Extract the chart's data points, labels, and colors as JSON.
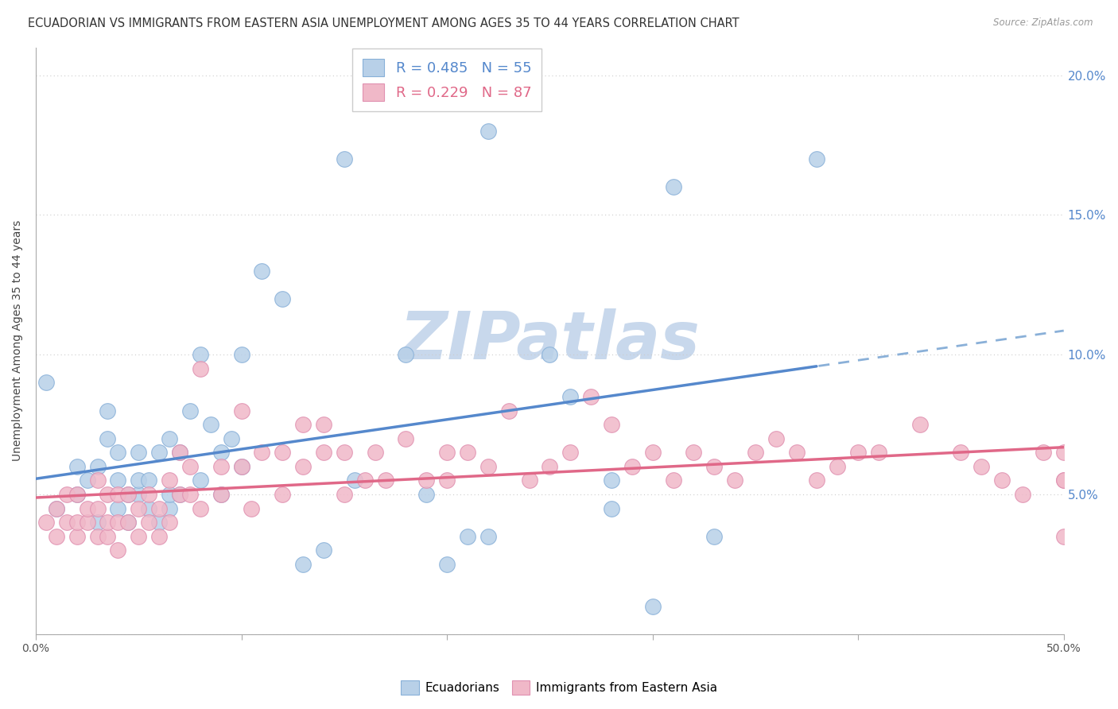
{
  "title": "ECUADORIAN VS IMMIGRANTS FROM EASTERN ASIA UNEMPLOYMENT AMONG AGES 35 TO 44 YEARS CORRELATION CHART",
  "source": "Source: ZipAtlas.com",
  "ylabel": "Unemployment Among Ages 35 to 44 years",
  "xlim": [
    0.0,
    0.5
  ],
  "ylim": [
    0.0,
    0.21
  ],
  "xticks": [
    0.0,
    0.1,
    0.2,
    0.3,
    0.4,
    0.5
  ],
  "yticks": [
    0.0,
    0.05,
    0.1,
    0.15,
    0.2
  ],
  "right_ytick_labels": [
    "",
    "5.0%",
    "10.0%",
    "15.0%",
    "20.0%"
  ],
  "xtick_labels": [
    "0.0%",
    "",
    "",
    "",
    "",
    "50.0%"
  ],
  "watermark": "ZIPatlas",
  "series": [
    {
      "name": "Ecuadorians",
      "R": 0.485,
      "N": 55,
      "color": "#b8d0e8",
      "border_color": "#88b0d8",
      "line_color": "#5588cc",
      "dash_color": "#8ab0d8",
      "x": [
        0.005,
        0.01,
        0.02,
        0.02,
        0.025,
        0.03,
        0.03,
        0.035,
        0.035,
        0.04,
        0.04,
        0.04,
        0.045,
        0.045,
        0.05,
        0.05,
        0.05,
        0.055,
        0.055,
        0.06,
        0.06,
        0.065,
        0.065,
        0.065,
        0.07,
        0.07,
        0.075,
        0.08,
        0.08,
        0.085,
        0.09,
        0.09,
        0.095,
        0.1,
        0.1,
        0.11,
        0.12,
        0.13,
        0.14,
        0.15,
        0.155,
        0.18,
        0.19,
        0.2,
        0.21,
        0.22,
        0.22,
        0.25,
        0.26,
        0.28,
        0.28,
        0.3,
        0.31,
        0.33,
        0.38
      ],
      "y": [
        0.09,
        0.045,
        0.05,
        0.06,
        0.055,
        0.04,
        0.06,
        0.07,
        0.08,
        0.045,
        0.055,
        0.065,
        0.04,
        0.05,
        0.05,
        0.055,
        0.065,
        0.045,
        0.055,
        0.04,
        0.065,
        0.045,
        0.05,
        0.07,
        0.05,
        0.065,
        0.08,
        0.055,
        0.1,
        0.075,
        0.05,
        0.065,
        0.07,
        0.06,
        0.1,
        0.13,
        0.12,
        0.025,
        0.03,
        0.17,
        0.055,
        0.1,
        0.05,
        0.025,
        0.035,
        0.035,
        0.18,
        0.1,
        0.085,
        0.045,
        0.055,
        0.01,
        0.16,
        0.035,
        0.17
      ]
    },
    {
      "name": "Immigrants from Eastern Asia",
      "R": 0.229,
      "N": 87,
      "color": "#f0b8c8",
      "border_color": "#e090b0",
      "line_color": "#e06888",
      "dash_color": "#e06888",
      "x": [
        0.005,
        0.01,
        0.01,
        0.015,
        0.015,
        0.02,
        0.02,
        0.02,
        0.025,
        0.025,
        0.03,
        0.03,
        0.03,
        0.035,
        0.035,
        0.035,
        0.04,
        0.04,
        0.04,
        0.045,
        0.045,
        0.05,
        0.05,
        0.055,
        0.055,
        0.06,
        0.06,
        0.065,
        0.065,
        0.07,
        0.07,
        0.075,
        0.075,
        0.08,
        0.08,
        0.09,
        0.09,
        0.1,
        0.1,
        0.105,
        0.11,
        0.12,
        0.12,
        0.13,
        0.13,
        0.14,
        0.14,
        0.15,
        0.15,
        0.16,
        0.165,
        0.17,
        0.18,
        0.19,
        0.2,
        0.2,
        0.21,
        0.22,
        0.23,
        0.24,
        0.25,
        0.26,
        0.27,
        0.28,
        0.29,
        0.3,
        0.31,
        0.32,
        0.33,
        0.34,
        0.35,
        0.36,
        0.37,
        0.38,
        0.39,
        0.4,
        0.41,
        0.43,
        0.45,
        0.46,
        0.47,
        0.48,
        0.49,
        0.5,
        0.5,
        0.5,
        0.5
      ],
      "y": [
        0.04,
        0.035,
        0.045,
        0.04,
        0.05,
        0.035,
        0.04,
        0.05,
        0.04,
        0.045,
        0.035,
        0.045,
        0.055,
        0.035,
        0.04,
        0.05,
        0.03,
        0.04,
        0.05,
        0.04,
        0.05,
        0.035,
        0.045,
        0.04,
        0.05,
        0.035,
        0.045,
        0.04,
        0.055,
        0.05,
        0.065,
        0.05,
        0.06,
        0.045,
        0.095,
        0.05,
        0.06,
        0.06,
        0.08,
        0.045,
        0.065,
        0.05,
        0.065,
        0.06,
        0.075,
        0.065,
        0.075,
        0.05,
        0.065,
        0.055,
        0.065,
        0.055,
        0.07,
        0.055,
        0.055,
        0.065,
        0.065,
        0.06,
        0.08,
        0.055,
        0.06,
        0.065,
        0.085,
        0.075,
        0.06,
        0.065,
        0.055,
        0.065,
        0.06,
        0.055,
        0.065,
        0.07,
        0.065,
        0.055,
        0.06,
        0.065,
        0.065,
        0.075,
        0.065,
        0.06,
        0.055,
        0.05,
        0.065,
        0.055,
        0.055,
        0.065,
        0.035
      ]
    }
  ],
  "background_color": "#ffffff",
  "grid_color": "#cccccc",
  "title_fontsize": 10.5,
  "axis_label_fontsize": 10,
  "tick_fontsize": 10,
  "legend_fontsize": 13,
  "watermark_color": "#c8d8ec",
  "watermark_fontsize": 60
}
